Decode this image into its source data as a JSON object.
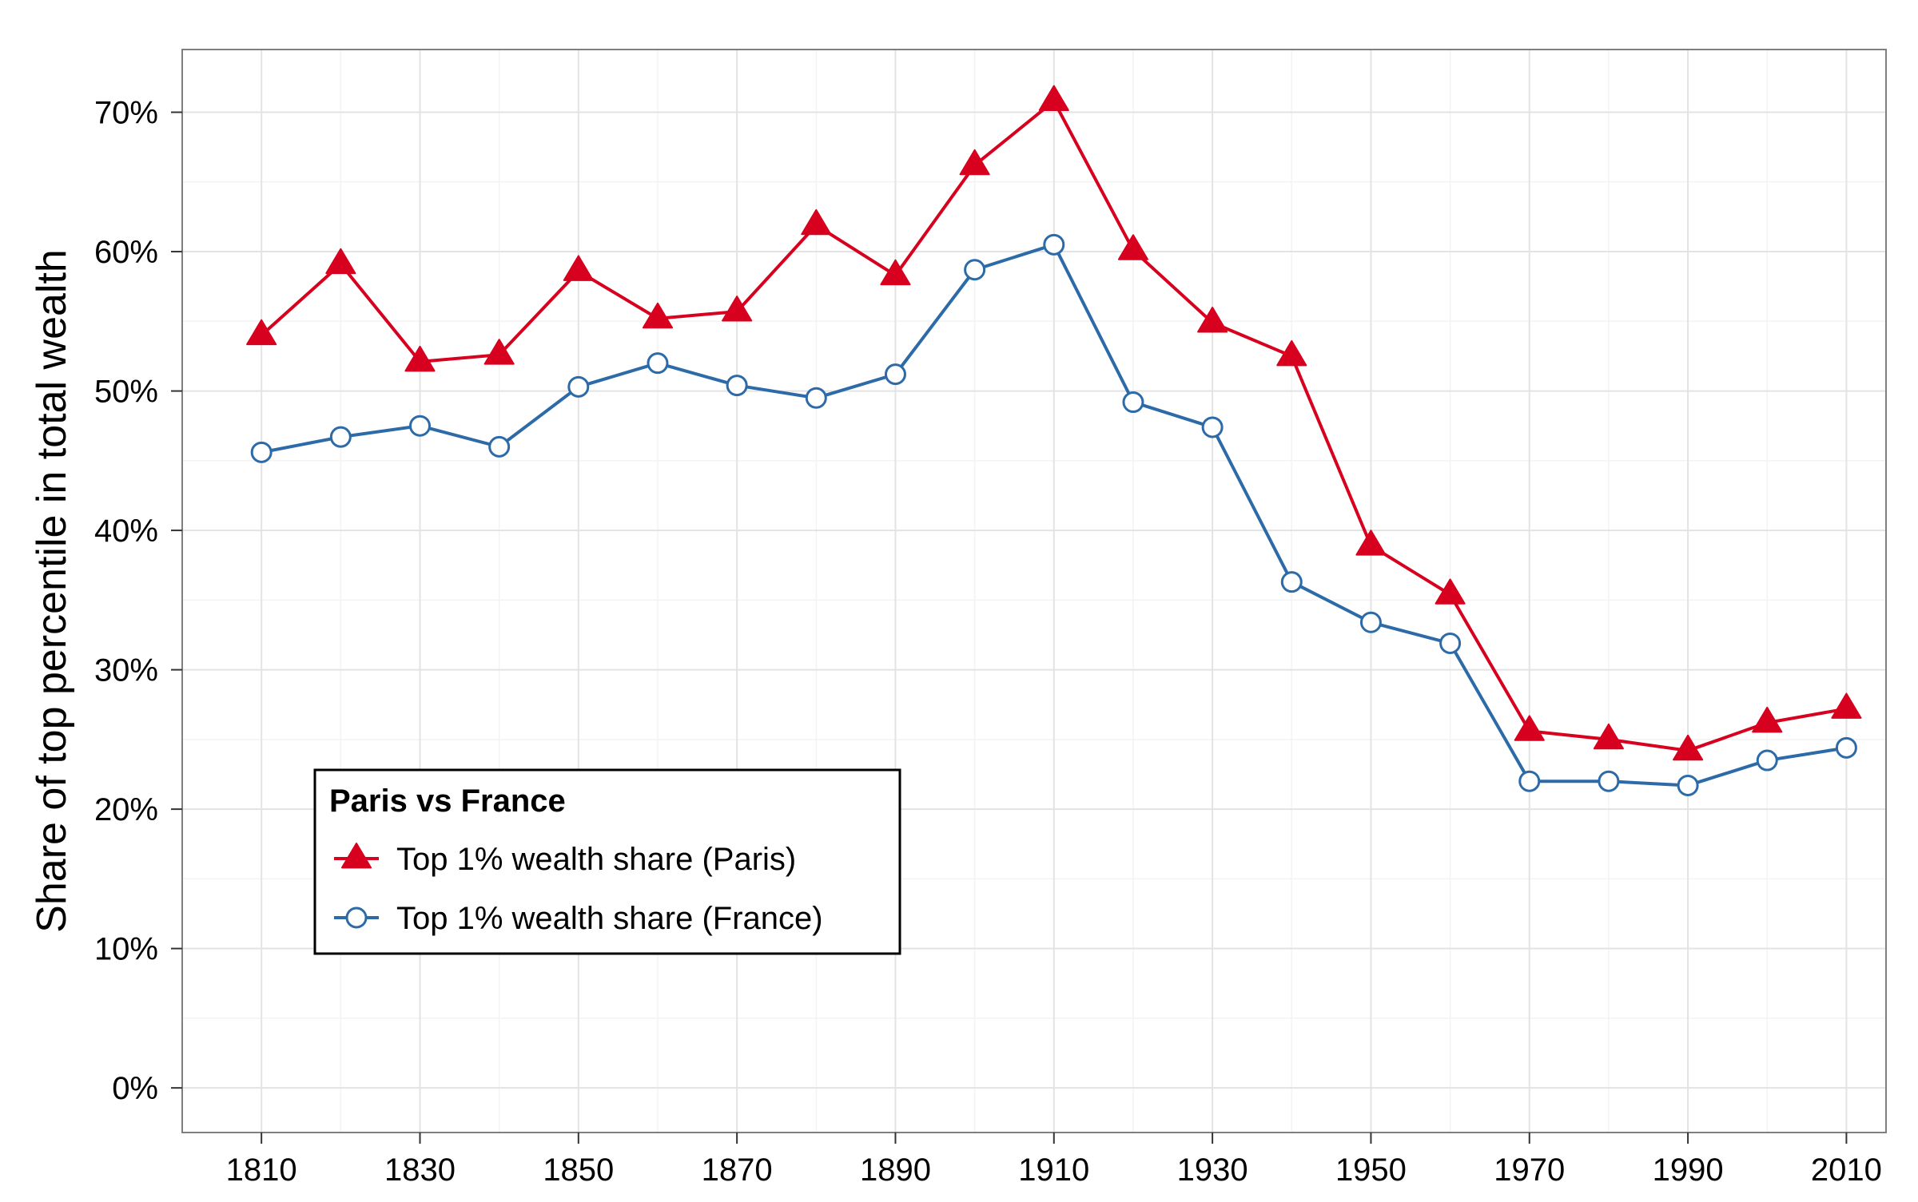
{
  "chart_data": {
    "type": "line",
    "title": "",
    "xlabel": "",
    "ylabel": "Share of top percentile in total wealth",
    "x": [
      1810,
      1820,
      1830,
      1840,
      1850,
      1860,
      1870,
      1880,
      1890,
      1900,
      1910,
      1920,
      1930,
      1940,
      1950,
      1960,
      1970,
      1980,
      1990,
      2000,
      2010
    ],
    "series": [
      {
        "name": "Top 1% wealth share (Paris)",
        "marker": "filled-triangle",
        "color": "#d7001e",
        "values": [
          0.54,
          0.591,
          0.521,
          0.526,
          0.586,
          0.552,
          0.557,
          0.619,
          0.583,
          0.662,
          0.708,
          0.601,
          0.549,
          0.525,
          0.389,
          0.354,
          0.256,
          0.25,
          0.242,
          0.262,
          0.272
        ]
      },
      {
        "name": "Top 1% wealth share (France)",
        "marker": "open-circle",
        "color": "#2c6aa8",
        "values": [
          0.456,
          0.467,
          0.475,
          0.46,
          0.503,
          0.52,
          0.504,
          0.495,
          0.512,
          0.587,
          0.605,
          0.492,
          0.474,
          0.363,
          0.334,
          0.319,
          0.22,
          0.22,
          0.217,
          0.235,
          0.244
        ]
      }
    ],
    "xlim": [
      1800,
      2015
    ],
    "ylim": [
      -0.032,
      0.745
    ],
    "x_ticks": [
      1810,
      1830,
      1850,
      1870,
      1890,
      1910,
      1930,
      1950,
      1970,
      1990,
      2010
    ],
    "x_tick_labels": [
      "1810",
      "1830",
      "1850",
      "1870",
      "1890",
      "1910",
      "1930",
      "1950",
      "1970",
      "1990",
      "2010"
    ],
    "y_ticks": [
      0,
      0.1,
      0.2,
      0.3,
      0.4,
      0.5,
      0.6,
      0.7
    ],
    "y_tick_labels": [
      "0%",
      "10%",
      "20%",
      "30%",
      "40%",
      "50%",
      "60%",
      "70%"
    ],
    "grid": true,
    "legend": {
      "title": "Paris vs France",
      "placement": "bottom-left"
    }
  }
}
